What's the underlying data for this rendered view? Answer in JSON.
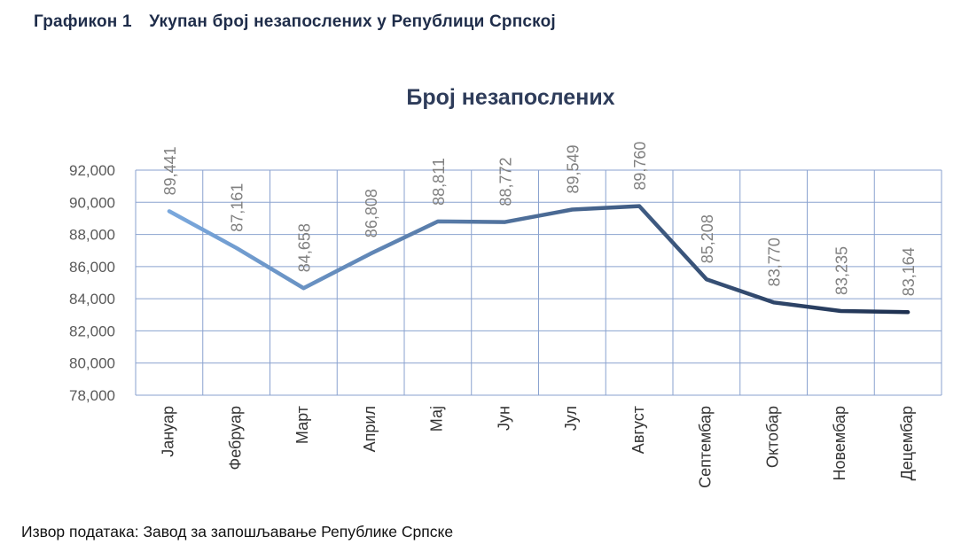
{
  "figure": {
    "number": "Графикон 1",
    "caption": "Укупан број незапослених у Републици Српској"
  },
  "source": "Извор података: Завод за запошљавање Републике Српске",
  "chart_data": {
    "type": "line",
    "title": "Број незапослених",
    "xlabel": "",
    "ylabel": "",
    "categories": [
      "Јануар",
      "Фебруар",
      "Март",
      "Април",
      "Мај",
      "Јун",
      "Јул",
      "Август",
      "Септембар",
      "Октобар",
      "Новембар",
      "Децембар"
    ],
    "values": [
      89441,
      87161,
      84658,
      86808,
      88811,
      88772,
      89549,
      89760,
      85208,
      83770,
      83235,
      83164
    ],
    "value_labels": [
      "89,441",
      "87,161",
      "84,658",
      "86,808",
      "88,811",
      "88,772",
      "89,549",
      "89,760",
      "85,208",
      "83,770",
      "83,235",
      "83,164"
    ],
    "ylim": [
      78000,
      92000
    ],
    "y_ticks": [
      "92,000",
      "90,000",
      "88,000",
      "86,000",
      "84,000",
      "82,000",
      "80,000",
      "78,000"
    ],
    "grid": true,
    "legend": "none",
    "line_gradient": [
      "#7aa8dd",
      "#1e3050"
    ],
    "grid_color": "#8aa2cf",
    "label_color": "#808080"
  }
}
